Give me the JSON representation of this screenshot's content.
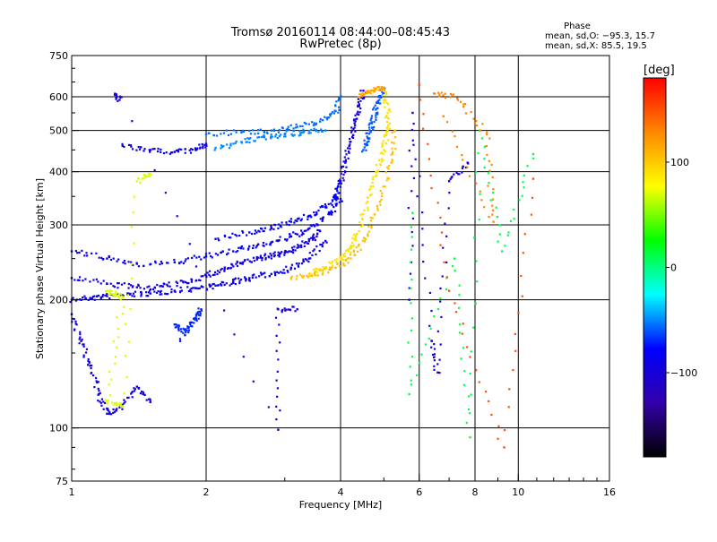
{
  "chart_data": {
    "type": "scatter",
    "title": "Tromsø 20160114 08:44:00–08:45:43",
    "subtitle": "RwPretec (8p)",
    "xlabel": "Frequency [MHz]",
    "ylabel": "Stationary phase Virtual Height [km]",
    "x_scale": "log",
    "y_scale": "log",
    "xlim": [
      1,
      16
    ],
    "ylim": [
      75,
      750
    ],
    "x_ticks": [
      1,
      2,
      4,
      6,
      8,
      10,
      16
    ],
    "x_tick_labels": [
      "1",
      "2",
      "4",
      "6",
      "8",
      "10",
      "16"
    ],
    "x_grid": [
      2,
      4,
      6,
      8,
      10
    ],
    "y_ticks": [
      75,
      100,
      200,
      300,
      400,
      500,
      600,
      750
    ],
    "y_tick_labels": [
      "75",
      "100",
      "200",
      "300",
      "400",
      "500",
      "600",
      "750"
    ],
    "grid": true,
    "stats": {
      "heading": "Phase",
      "line_o": "mean, sd,O: −95.3, 15.7",
      "line_x": "mean, sd,X: 85.5, 19.5"
    },
    "colorbar": {
      "label": "[deg]",
      "range": [
        -180,
        180
      ],
      "ticks": [
        100,
        0,
        -100
      ],
      "tick_labels": [
        "100",
        "0",
        "−100"
      ],
      "colors": [
        "#ff0000",
        "#ff8800",
        "#ffff00",
        "#00ff00",
        "#00ffff",
        "#0000ff",
        "#3300aa",
        "#000000"
      ]
    },
    "series": [
      {
        "phase": -90,
        "points": [
          [
            1.0,
            200
          ],
          [
            1.1,
            202
          ],
          [
            1.2,
            204
          ],
          [
            1.35,
            206
          ],
          [
            1.5,
            207
          ],
          [
            1.7,
            210
          ],
          [
            1.9,
            213
          ],
          [
            2.1,
            216
          ],
          [
            2.3,
            220
          ],
          [
            2.5,
            225
          ],
          [
            2.8,
            230
          ],
          [
            3.1,
            238
          ],
          [
            3.4,
            250
          ],
          [
            3.7,
            275
          ]
        ]
      },
      {
        "phase": -95,
        "points": [
          [
            1.0,
            225
          ],
          [
            1.2,
            218
          ],
          [
            1.4,
            214
          ],
          [
            1.6,
            215
          ],
          [
            1.8,
            220
          ],
          [
            2.0,
            228
          ],
          [
            2.2,
            236
          ],
          [
            2.4,
            244
          ],
          [
            2.6,
            250
          ],
          [
            2.8,
            254
          ],
          [
            3.0,
            258
          ],
          [
            3.2,
            265
          ],
          [
            3.4,
            275
          ],
          [
            3.6,
            290
          ]
        ]
      },
      {
        "phase": -85,
        "points": [
          [
            1.0,
            260
          ],
          [
            1.2,
            250
          ],
          [
            1.4,
            243
          ],
          [
            1.7,
            245
          ],
          [
            2.0,
            253
          ],
          [
            2.3,
            260
          ],
          [
            2.6,
            268
          ],
          [
            2.9,
            275
          ],
          [
            3.2,
            285
          ],
          [
            3.5,
            298
          ],
          [
            3.8,
            320
          ],
          [
            4.0,
            345
          ]
        ]
      },
      {
        "phase": -80,
        "points": [
          [
            2.1,
            278
          ],
          [
            2.5,
            288
          ],
          [
            2.8,
            295
          ],
          [
            3.1,
            305
          ],
          [
            3.4,
            315
          ],
          [
            3.7,
            330
          ],
          [
            3.9,
            350
          ],
          [
            4.0,
            380
          ]
        ]
      },
      {
        "phase": -55,
        "points": [
          [
            2.0,
            490
          ],
          [
            2.4,
            495
          ],
          [
            2.8,
            500
          ],
          [
            3.2,
            510
          ],
          [
            3.6,
            525
          ],
          [
            3.9,
            555
          ],
          [
            4.0,
            600
          ]
        ]
      },
      {
        "phase": -50,
        "points": [
          [
            2.1,
            455
          ],
          [
            2.4,
            470
          ],
          [
            2.7,
            482
          ],
          [
            3.0,
            490
          ],
          [
            3.3,
            495
          ],
          [
            3.7,
            500
          ]
        ]
      },
      {
        "phase": -90,
        "points": [
          [
            1.3,
            460
          ],
          [
            1.5,
            450
          ],
          [
            1.7,
            445
          ],
          [
            1.9,
            450
          ],
          [
            2.0,
            465
          ]
        ]
      },
      {
        "phase": -100,
        "points": [
          [
            4.0,
            380
          ],
          [
            4.1,
            420
          ],
          [
            4.2,
            470
          ],
          [
            4.3,
            520
          ],
          [
            4.4,
            570
          ],
          [
            4.5,
            620
          ]
        ]
      },
      {
        "phase": -60,
        "points": [
          [
            4.5,
            450
          ],
          [
            4.6,
            480
          ],
          [
            4.7,
            520
          ],
          [
            4.8,
            560
          ],
          [
            4.9,
            600
          ],
          [
            5.0,
            630
          ]
        ]
      },
      {
        "phase": 90,
        "points": [
          [
            3.4,
            230
          ],
          [
            3.7,
            238
          ],
          [
            4.0,
            250
          ],
          [
            4.2,
            265
          ],
          [
            4.4,
            290
          ],
          [
            4.6,
            340
          ],
          [
            4.8,
            400
          ],
          [
            5.0,
            450
          ],
          [
            5.1,
            500
          ],
          [
            5.1,
            550
          ],
          [
            5.0,
            620
          ]
        ]
      },
      {
        "phase": 105,
        "points": [
          [
            3.1,
            225
          ],
          [
            3.5,
            230
          ],
          [
            3.9,
            238
          ],
          [
            4.3,
            255
          ],
          [
            4.6,
            285
          ],
          [
            4.9,
            340
          ],
          [
            5.2,
            420
          ],
          [
            5.3,
            500
          ]
        ]
      },
      {
        "phase": 115,
        "points": [
          [
            4.4,
            600
          ],
          [
            4.6,
            615
          ],
          [
            4.8,
            625
          ],
          [
            5.0,
            630
          ]
        ]
      },
      {
        "phase": -95,
        "points": [
          [
            1.0,
            185
          ],
          [
            1.05,
            160
          ],
          [
            1.1,
            140
          ],
          [
            1.15,
            120
          ],
          [
            1.2,
            108
          ],
          [
            1.3,
            112
          ],
          [
            1.4,
            125
          ],
          [
            1.5,
            115
          ]
        ]
      },
      {
        "phase": -70,
        "points": [
          [
            1.7,
            175
          ],
          [
            1.8,
            168
          ],
          [
            1.9,
            180
          ],
          [
            1.95,
            190
          ],
          [
            1.75,
            160
          ]
        ]
      },
      {
        "phase": 70,
        "points": [
          [
            1.2,
            210
          ],
          [
            1.25,
            205
          ],
          [
            1.3,
            203
          ],
          [
            1.2,
            115
          ],
          [
            1.3,
            112
          ],
          [
            1.4,
            380
          ],
          [
            1.5,
            395
          ]
        ]
      },
      {
        "phase": -100,
        "points": [
          [
            1.25,
            610
          ],
          [
            1.28,
            590
          ],
          [
            2.9,
            99
          ],
          [
            2.9,
            190
          ],
          [
            3.2,
            190
          ]
        ]
      },
      {
        "phase": -100,
        "points": [
          [
            5.7,
            200
          ],
          [
            5.8,
            550
          ],
          [
            6.4,
            160
          ],
          [
            6.6,
            135
          ],
          [
            7.0,
            380
          ],
          [
            7.7,
            420
          ]
        ]
      },
      {
        "phase": 10,
        "points": [
          [
            5.8,
            320
          ],
          [
            5.7,
            120
          ],
          [
            7.2,
            250
          ],
          [
            7.8,
            95
          ],
          [
            8.2,
            500
          ],
          [
            9.2,
            260
          ],
          [
            10.8,
            440
          ]
        ]
      },
      {
        "phase": 150,
        "points": [
          [
            6.0,
            640
          ],
          [
            7.0,
            210
          ],
          [
            9.3,
            90
          ],
          [
            10.8,
            385
          ]
        ]
      },
      {
        "phase": 130,
        "points": [
          [
            6.5,
            610
          ],
          [
            7.3,
            595
          ],
          [
            8.5,
            490
          ],
          [
            8.8,
            305
          ],
          [
            6.8,
            540
          ]
        ]
      }
    ]
  }
}
